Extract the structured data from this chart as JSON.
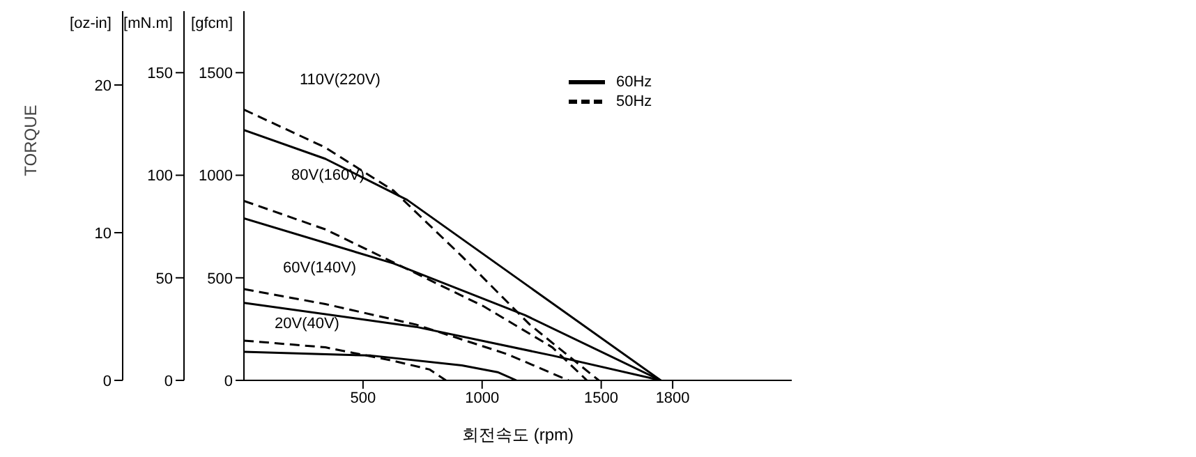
{
  "chart_data": {
    "type": "line",
    "xlabel": "회전속도 (rpm)",
    "ylabel": "[gfcm]",
    "y2label": "[mN.m]",
    "y3label": "[oz-in]",
    "xlim": [
      0,
      2300
    ],
    "xticks": [
      500,
      1000,
      1500,
      1800
    ],
    "ylim": [
      0,
      1800
    ],
    "yticks": [
      0,
      500,
      1000,
      1500
    ],
    "y2lim": [
      0,
      180
    ],
    "y2ticks": [
      0,
      50,
      100,
      150
    ],
    "y3lim": [
      0,
      25
    ],
    "y3ticks": [
      0,
      10,
      20
    ],
    "grid": false,
    "legend": "top right",
    "marker": "none",
    "series": [
      {
        "name": "60Hz",
        "color": "#000000",
        "line_style": "solid",
        "x": [
          0,
          342,
          685,
          1750
        ],
        "values": [
          1220,
          1080,
          880,
          0
        ]
      },
      {
        "name": "50Hz",
        "color": "#000000",
        "line_style": "dashed",
        "x": [
          0,
          342,
          628,
          915,
          1200,
          1490
        ],
        "values": [
          1320,
          1135,
          925,
          605,
          272,
          0
        ]
      },
      {
        "color": "#000000",
        "line_style": "solid",
        "x": [
          0,
          628,
          1180,
          1750
        ],
        "values": [
          790,
          570,
          318,
          0
        ]
      },
      {
        "color": "#000000",
        "line_style": "dashed",
        "x": [
          0,
          342,
          628,
          1008,
          1295,
          1440
        ],
        "values": [
          875,
          736,
          575,
          360,
          161,
          0
        ]
      },
      {
        "color": "#000000",
        "line_style": "solid",
        "x": [
          0,
          722,
          1295,
          1750
        ],
        "values": [
          378,
          261,
          121,
          0
        ]
      },
      {
        "color": "#000000",
        "line_style": "dashed",
        "x": [
          0,
          342,
          722,
          1105,
          1363
        ],
        "values": [
          445,
          372,
          272,
          128,
          0
        ]
      },
      {
        "color": "#000000",
        "line_style": "solid",
        "x": [
          0,
          533,
          915,
          1065,
          1144
        ],
        "values": [
          139,
          121,
          73,
          40,
          0
        ]
      },
      {
        "color": "#000000",
        "line_style": "dashed",
        "x": [
          0,
          342,
          628,
          780,
          848
        ],
        "values": [
          194,
          161,
          95,
          53,
          0
        ]
      }
    ],
    "annotations": [
      "TORQUE",
      "110V(220V)",
      "80V(160V)",
      "60V(140V)",
      "20V(40V)"
    ]
  }
}
